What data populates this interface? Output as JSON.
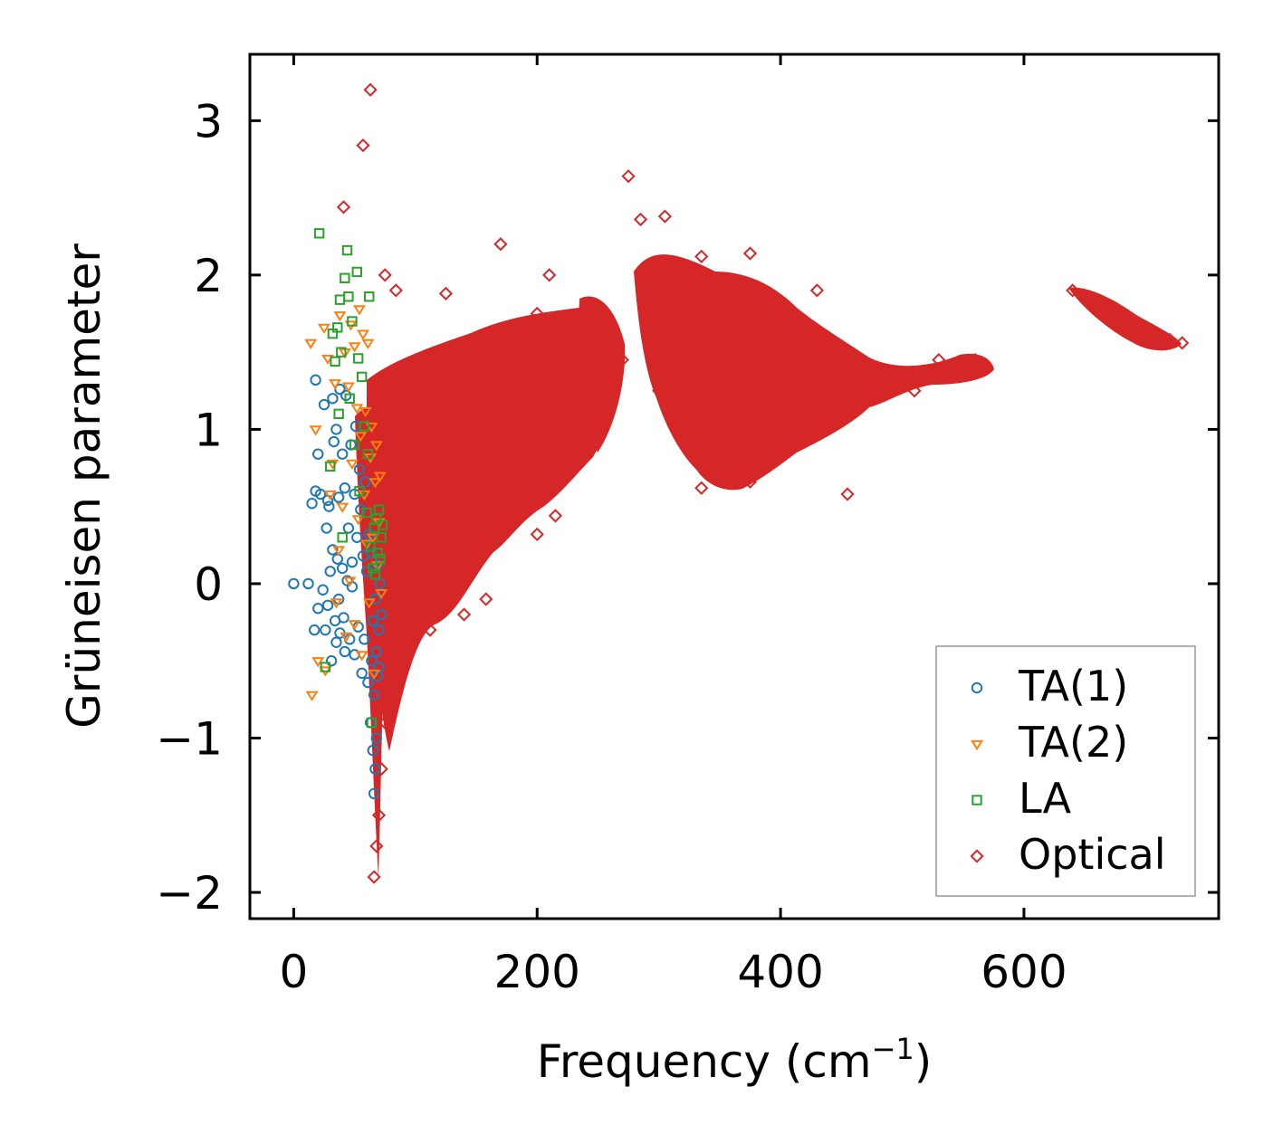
{
  "chart_data": {
    "type": "scatter",
    "title": "",
    "xlabel": "Frequency (cm",
    "xlabel_sup": "−1",
    "xlabel_close": ")",
    "ylabel": "Grüneisen parameter",
    "xlim": [
      -36,
      760
    ],
    "ylim": [
      -2.17,
      3.43
    ],
    "xticks": [
      0,
      200,
      400,
      600
    ],
    "xtick_labels": [
      "0",
      "200",
      "400",
      "600"
    ],
    "yticks": [
      -2,
      -1,
      0,
      1,
      2,
      3
    ],
    "ytick_labels": [
      "−2",
      "−1",
      "0",
      "1",
      "2",
      "3"
    ],
    "grid": false,
    "legend_position": "bottom-right",
    "series": [
      {
        "name": "TA(1)",
        "marker": "circle",
        "color": "#1f77b4",
        "points": [
          [
            0,
            0
          ],
          [
            12,
            0
          ],
          [
            15,
            0.52
          ],
          [
            17,
            -0.3
          ],
          [
            18,
            1.32
          ],
          [
            18,
            0.6
          ],
          [
            20,
            0.84
          ],
          [
            20,
            -0.16
          ],
          [
            22,
            0.58
          ],
          [
            24,
            -0.04
          ],
          [
            25,
            1.16
          ],
          [
            26,
            -0.3
          ],
          [
            27,
            0.36
          ],
          [
            28,
            0.54
          ],
          [
            28,
            -0.14
          ],
          [
            29,
            0.5
          ],
          [
            30,
            0.08
          ],
          [
            31,
            -0.5
          ],
          [
            32,
            1.2
          ],
          [
            32,
            0.22
          ],
          [
            33,
            0.92
          ],
          [
            34,
            -0.24
          ],
          [
            35,
            1.0
          ],
          [
            35,
            -0.38
          ],
          [
            36,
            0.16
          ],
          [
            37,
            0.56
          ],
          [
            37,
            -0.1
          ],
          [
            38,
            1.26
          ],
          [
            38,
            -0.32
          ],
          [
            40,
            0.84
          ],
          [
            40,
            0.1
          ],
          [
            41,
            -0.22
          ],
          [
            42,
            0.62
          ],
          [
            42,
            -0.44
          ],
          [
            43,
            1.22
          ],
          [
            44,
            0.02
          ],
          [
            45,
            0.36
          ],
          [
            46,
            -0.36
          ],
          [
            47,
            0.9
          ],
          [
            48,
            0.14
          ],
          [
            48,
            -0.02
          ],
          [
            50,
            0.58
          ],
          [
            50,
            -0.46
          ],
          [
            51,
            1.02
          ],
          [
            52,
            0.3
          ],
          [
            53,
            -0.28
          ],
          [
            54,
            0.74
          ],
          [
            55,
            0.48
          ],
          [
            56,
            -0.58
          ],
          [
            57,
            0.18
          ],
          [
            58,
            -0.36
          ],
          [
            59,
            0.66
          ],
          [
            60,
            0.08
          ],
          [
            61,
            -0.64
          ],
          [
            62,
            0.32
          ],
          [
            63,
            -0.9
          ],
          [
            64,
            -0.5
          ],
          [
            64,
            0.2
          ],
          [
            65,
            -1.08
          ],
          [
            65,
            -0.24
          ],
          [
            66,
            -1.36
          ],
          [
            66,
            -0.72
          ],
          [
            67,
            -1.2
          ],
          [
            67,
            -0.1
          ],
          [
            68,
            -1.0
          ],
          [
            68,
            -0.44
          ],
          [
            69,
            -0.6
          ],
          [
            69,
            0.12
          ],
          [
            70,
            -0.3
          ],
          [
            70,
            -0.54
          ],
          [
            71,
            0.0
          ],
          [
            72,
            -0.2
          ]
        ]
      },
      {
        "name": "TA(2)",
        "marker": "triangle-down",
        "color": "#ff7f0e",
        "points": [
          [
            14,
            1.56
          ],
          [
            15,
            -0.72
          ],
          [
            18,
            1.0
          ],
          [
            20,
            -0.5
          ],
          [
            25,
            1.66
          ],
          [
            26,
            -0.56
          ],
          [
            28,
            1.46
          ],
          [
            30,
            0.58
          ],
          [
            32,
            0.78
          ],
          [
            34,
            1.3
          ],
          [
            35,
            -0.12
          ],
          [
            37,
            0.22
          ],
          [
            38,
            1.74
          ],
          [
            40,
            0.5
          ],
          [
            42,
            1.5
          ],
          [
            43,
            -0.34
          ],
          [
            45,
            1.28
          ],
          [
            46,
            0.02
          ],
          [
            47,
            1.68
          ],
          [
            48,
            0.78
          ],
          [
            50,
            1.54
          ],
          [
            50,
            -0.26
          ],
          [
            52,
            1.14
          ],
          [
            53,
            0.42
          ],
          [
            54,
            1.78
          ],
          [
            55,
            0.96
          ],
          [
            56,
            -0.46
          ],
          [
            57,
            1.62
          ],
          [
            58,
            0.58
          ],
          [
            59,
            1.12
          ],
          [
            60,
            0.26
          ],
          [
            61,
            1.56
          ],
          [
            62,
            -0.12
          ],
          [
            63,
            0.82
          ],
          [
            64,
            1.02
          ],
          [
            65,
            0.3
          ],
          [
            66,
            -0.58
          ],
          [
            67,
            0.66
          ],
          [
            68,
            0.9
          ],
          [
            69,
            0.12
          ],
          [
            70,
            0.4
          ],
          [
            71,
            0.7
          ],
          [
            72,
            -0.06
          ]
        ]
      },
      {
        "name": "LA",
        "marker": "square",
        "color": "#2ca02c",
        "points": [
          [
            21,
            2.27
          ],
          [
            26,
            -0.54
          ],
          [
            30,
            0.76
          ],
          [
            32,
            1.62
          ],
          [
            34,
            1.44
          ],
          [
            36,
            1.66
          ],
          [
            37,
            1.1
          ],
          [
            38,
            1.84
          ],
          [
            39,
            1.5
          ],
          [
            40,
            0.3
          ],
          [
            42,
            1.98
          ],
          [
            44,
            2.16
          ],
          [
            45,
            1.86
          ],
          [
            46,
            1.2
          ],
          [
            48,
            1.7
          ],
          [
            50,
            0.9
          ],
          [
            52,
            2.02
          ],
          [
            53,
            1.46
          ],
          [
            54,
            0.6
          ],
          [
            56,
            1.34
          ],
          [
            58,
            1.02
          ],
          [
            60,
            0.46
          ],
          [
            61,
            0.84
          ],
          [
            62,
            1.86
          ],
          [
            63,
            0.24
          ],
          [
            64,
            -0.9
          ],
          [
            65,
            0.1
          ],
          [
            66,
            0.36
          ],
          [
            67,
            0.06
          ],
          [
            68,
            0.42
          ],
          [
            69,
            0.2
          ],
          [
            70,
            0.48
          ],
          [
            71,
            0.16
          ],
          [
            72,
            0.3
          ],
          [
            73,
            0.38
          ]
        ]
      },
      {
        "name": "Optical",
        "marker": "diamond",
        "color": "#d62728",
        "points": [
          [
            63,
            3.2
          ],
          [
            57,
            2.84
          ],
          [
            41,
            2.44
          ],
          [
            75,
            2.0
          ],
          [
            84,
            1.9
          ],
          [
            125,
            1.88
          ],
          [
            170,
            2.2
          ],
          [
            210,
            2.0
          ],
          [
            275,
            2.64
          ],
          [
            285,
            2.36
          ],
          [
            305,
            2.38
          ],
          [
            335,
            2.12
          ],
          [
            375,
            2.14
          ],
          [
            430,
            1.9
          ],
          [
            66,
            -1.9
          ],
          [
            68,
            -1.7
          ],
          [
            70,
            -1.5
          ],
          [
            72,
            -1.2
          ],
          [
            75,
            -0.9
          ],
          [
            80,
            -0.6
          ],
          [
            90,
            -0.3
          ],
          [
            100,
            -0.1
          ],
          [
            110,
            0.2
          ],
          [
            125,
            0.5
          ],
          [
            140,
            0.7
          ],
          [
            160,
            0.95
          ],
          [
            190,
            1.15
          ],
          [
            220,
            1.3
          ],
          [
            245,
            1.5
          ],
          [
            270,
            1.45
          ],
          [
            300,
            1.25
          ],
          [
            330,
            1.0
          ],
          [
            360,
            0.85
          ],
          [
            380,
            1.25
          ],
          [
            400,
            1.2
          ],
          [
            420,
            1.32
          ],
          [
            445,
            1.3
          ],
          [
            470,
            1.2
          ],
          [
            500,
            1.3
          ],
          [
            530,
            1.45
          ],
          [
            560,
            1.45
          ],
          [
            140,
            -0.2
          ],
          [
            158,
            -0.1
          ],
          [
            100,
            1.1
          ],
          [
            130,
            1.35
          ],
          [
            170,
            1.6
          ],
          [
            200,
            1.75
          ],
          [
            240,
            1.8
          ],
          [
            310,
            1.8
          ],
          [
            350,
            1.6
          ],
          [
            385,
            1.55
          ],
          [
            410,
            1.6
          ],
          [
            460,
            1.4
          ],
          [
            510,
            1.25
          ],
          [
            640,
            1.9
          ],
          [
            660,
            1.82
          ],
          [
            680,
            1.74
          ],
          [
            700,
            1.64
          ],
          [
            720,
            1.58
          ],
          [
            730,
            1.56
          ],
          [
            335,
            0.62
          ],
          [
            375,
            0.66
          ],
          [
            455,
            0.58
          ],
          [
            200,
            0.32
          ],
          [
            215,
            0.44
          ],
          [
            160,
            0.26
          ],
          [
            117,
            0.1
          ],
          [
            112,
            -0.3
          ],
          [
            100,
            -0.24
          ]
        ]
      }
    ]
  }
}
